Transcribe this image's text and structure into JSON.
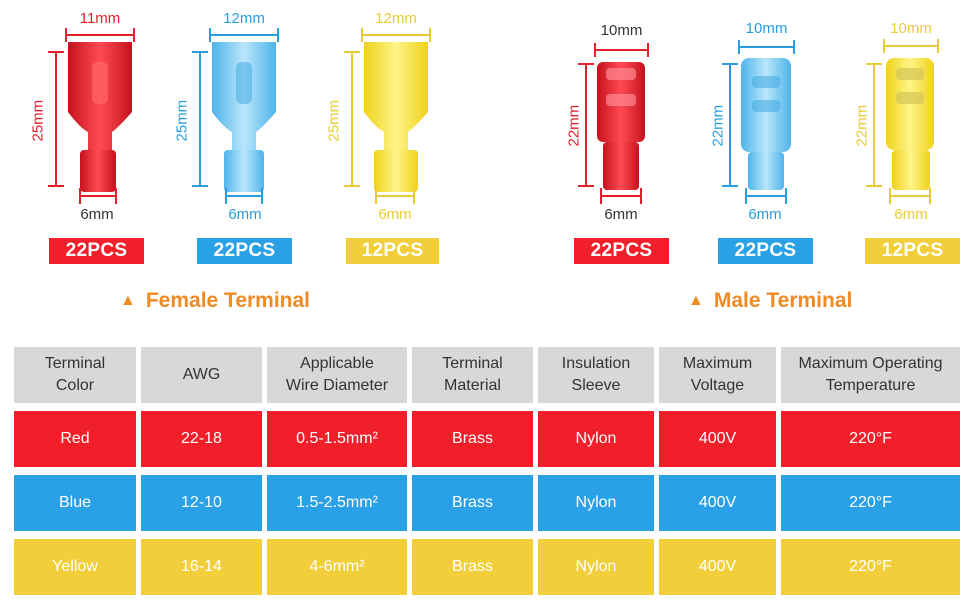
{
  "colors": {
    "red": "#f01f2a",
    "blue": "#2aa0e6",
    "yellow": "#f2cf3a",
    "orange": "#f08a24",
    "gray": "#d8d8d8"
  },
  "female": {
    "title": "Female Terminal",
    "items": [
      {
        "top": "11mm",
        "height": "25mm",
        "bottom": "6mm",
        "pcs": "22PCS"
      },
      {
        "top": "12mm",
        "height": "25mm",
        "bottom": "6mm",
        "pcs": "22PCS"
      },
      {
        "top": "12mm",
        "height": "25mm",
        "bottom": "6mm",
        "pcs": "12PCS"
      }
    ]
  },
  "male": {
    "title": "Male Terminal",
    "items": [
      {
        "top": "10mm",
        "height": "22mm",
        "bottom": "6mm",
        "pcs": "22PCS"
      },
      {
        "top": "10mm",
        "height": "22mm",
        "bottom": "6mm",
        "pcs": "22PCS"
      },
      {
        "top": "10mm",
        "height": "22mm",
        "bottom": "6mm",
        "pcs": "12PCS"
      }
    ]
  },
  "table": {
    "headers": [
      [
        "Terminal",
        "Color"
      ],
      [
        "AWG",
        ""
      ],
      [
        "Applicable",
        "Wire Diameter"
      ],
      [
        "Terminal",
        "Material"
      ],
      [
        "Insulation",
        "Sleeve"
      ],
      [
        "Maximum",
        "Voltage"
      ],
      [
        "Maximum Operating",
        "Temperature"
      ]
    ],
    "rows": [
      [
        "Red",
        "22-18",
        "0.5-1.5mm²",
        "Brass",
        "Nylon",
        "400V",
        "220°F"
      ],
      [
        "Blue",
        "12-10",
        "1.5-2.5mm²",
        "Brass",
        "Nylon",
        "400V",
        "220°F"
      ],
      [
        "Yellow",
        "16-14",
        "4-6mm²",
        "Brass",
        "Nylon",
        "400V",
        "220°F"
      ]
    ]
  }
}
